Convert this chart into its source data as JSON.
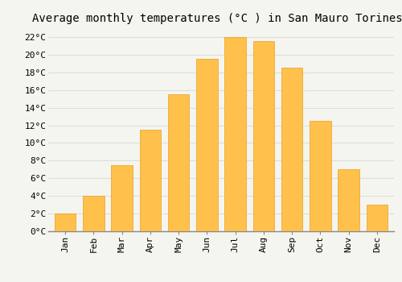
{
  "title": "Average monthly temperatures (°C ) in San Mauro Torinese",
  "months": [
    "Jan",
    "Feb",
    "Mar",
    "Apr",
    "May",
    "Jun",
    "Jul",
    "Aug",
    "Sep",
    "Oct",
    "Nov",
    "Dec"
  ],
  "temperatures": [
    2.0,
    4.0,
    7.5,
    11.5,
    15.5,
    19.5,
    22.0,
    21.5,
    18.5,
    12.5,
    7.0,
    3.0
  ],
  "bar_color": "#FFC04C",
  "bar_edge_color": "#E8A020",
  "background_color": "#F5F5F0",
  "grid_color": "#DDDDDD",
  "ylim": [
    0,
    23
  ],
  "yticks": [
    0,
    2,
    4,
    6,
    8,
    10,
    12,
    14,
    16,
    18,
    20,
    22
  ],
  "title_fontsize": 10,
  "tick_fontsize": 8,
  "title_font_family": "monospace"
}
